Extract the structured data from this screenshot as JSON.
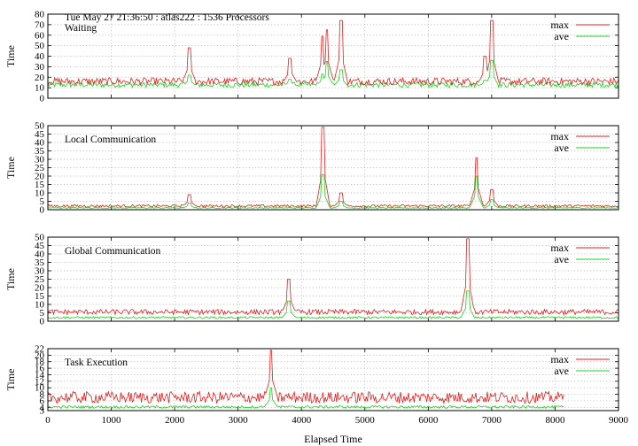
{
  "header": {
    "title": "Tue May 27 21:36:50 : atlas222 : 1536 Processors"
  },
  "chart_data": {
    "type": "line",
    "xlabel": "Elapsed Time",
    "ylabel": "Time",
    "xlim": [
      0,
      9000
    ],
    "x_ticks": [
      0,
      1000,
      2000,
      3000,
      4000,
      5000,
      6000,
      7000,
      8000,
      9000
    ],
    "grid": true,
    "legend_position": "top-right",
    "colors": {
      "max": "#e02020",
      "ave": "#20d020"
    },
    "series_names": [
      "max",
      "ave"
    ],
    "panels": [
      {
        "label": "Waiting",
        "ylim": [
          0,
          80
        ],
        "yticks": [
          0,
          10,
          20,
          30,
          40,
          50,
          60,
          70,
          80
        ],
        "x_end": 9000,
        "baseline": {
          "max": 15,
          "ave": 12
        },
        "noise": {
          "max": 3.5,
          "ave": 2.5
        },
        "peaks": [
          {
            "x": 2230,
            "max": 48,
            "ave": 22
          },
          {
            "x": 3820,
            "max": 38,
            "ave": 18
          },
          {
            "x": 4330,
            "max": 59,
            "ave": 23
          },
          {
            "x": 4400,
            "max": 65,
            "ave": 35
          },
          {
            "x": 4620,
            "max": 74,
            "ave": 27
          },
          {
            "x": 6900,
            "max": 40,
            "ave": 17
          },
          {
            "x": 7000,
            "max": 74,
            "ave": 36
          }
        ]
      },
      {
        "label": "Local Communication",
        "ylim": [
          0,
          50
        ],
        "yticks": [
          0,
          5,
          10,
          15,
          20,
          25,
          30,
          35,
          40,
          45,
          50
        ],
        "x_end": 9000,
        "baseline": {
          "max": 2,
          "ave": 1
        },
        "noise": {
          "max": 0.8,
          "ave": 0.3
        },
        "peaks": [
          {
            "x": 2230,
            "max": 9,
            "ave": 4
          },
          {
            "x": 4340,
            "max": 49,
            "ave": 21
          },
          {
            "x": 4620,
            "max": 10,
            "ave": 5
          },
          {
            "x": 6760,
            "max": 31,
            "ave": 20
          },
          {
            "x": 7000,
            "max": 12,
            "ave": 6
          }
        ]
      },
      {
        "label": "Global Communication",
        "ylim": [
          0,
          50
        ],
        "yticks": [
          0,
          5,
          10,
          15,
          20,
          25,
          30,
          35,
          40,
          45,
          50
        ],
        "x_end": 9000,
        "baseline": {
          "max": 5,
          "ave": 2
        },
        "noise": {
          "max": 1.6,
          "ave": 0.6
        },
        "peaks": [
          {
            "x": 3800,
            "max": 25,
            "ave": 12
          },
          {
            "x": 6620,
            "max": 49,
            "ave": 18
          }
        ]
      },
      {
        "label": "Task Execution",
        "ylim": [
          3,
          22
        ],
        "yticks": [
          3,
          4,
          6,
          8,
          10,
          12,
          14,
          16,
          18,
          20,
          22
        ],
        "x_end": 8150,
        "baseline": {
          "max": 6.5,
          "ave": 4
        },
        "noise": {
          "max": 1.8,
          "ave": 0.4
        },
        "peaks": [
          {
            "x": 3520,
            "max": 21.5,
            "ave": 10
          }
        ]
      }
    ]
  }
}
